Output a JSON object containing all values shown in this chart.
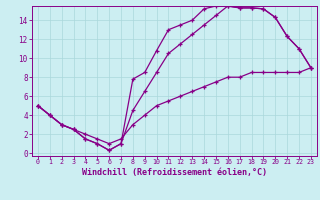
{
  "background_color": "#cceef2",
  "line_color": "#880088",
  "grid_color": "#aad8dc",
  "xlabel": "Windchill (Refroidissement éolien,°C)",
  "xlabel_fontsize": 6.0,
  "xtick_fontsize": 4.8,
  "ytick_fontsize": 5.5,
  "xlim": [
    -0.5,
    23.5
  ],
  "ylim": [
    -0.3,
    15.5
  ],
  "xticks": [
    0,
    1,
    2,
    3,
    4,
    5,
    6,
    7,
    8,
    9,
    10,
    11,
    12,
    13,
    14,
    15,
    16,
    17,
    18,
    19,
    20,
    21,
    22,
    23
  ],
  "yticks": [
    0,
    2,
    4,
    6,
    8,
    10,
    12,
    14
  ],
  "line1_x": [
    0,
    1,
    2,
    3,
    4,
    5,
    6,
    7,
    8,
    9,
    10,
    11,
    12,
    13,
    14,
    15,
    16,
    17,
    18,
    19,
    20,
    21,
    22,
    23
  ],
  "line1_y": [
    5,
    4,
    3,
    2.5,
    1.5,
    1,
    0.3,
    1.0,
    7.8,
    8.5,
    10.8,
    13,
    13.5,
    14.0,
    15.2,
    15.5,
    15.5,
    15.3,
    15.3,
    15.2,
    14.3,
    12.3,
    11.0,
    9.0
  ],
  "line2_x": [
    0,
    1,
    2,
    3,
    4,
    5,
    6,
    7,
    8,
    9,
    10,
    11,
    12,
    13,
    14,
    15,
    16,
    17,
    18,
    19,
    20,
    21,
    22,
    23
  ],
  "line2_y": [
    5,
    4,
    3,
    2.5,
    1.5,
    1,
    0.3,
    1.0,
    4.5,
    6.5,
    8.5,
    10.5,
    11.5,
    12.5,
    13.5,
    14.5,
    15.5,
    15.3,
    15.3,
    15.2,
    14.3,
    12.3,
    11.0,
    9.0
  ],
  "line3_x": [
    0,
    1,
    2,
    3,
    4,
    5,
    6,
    7,
    8,
    9,
    10,
    11,
    12,
    13,
    14,
    15,
    16,
    17,
    18,
    19,
    20,
    21,
    22,
    23
  ],
  "line3_y": [
    5,
    4,
    3,
    2.5,
    2.0,
    1.5,
    1.0,
    1.5,
    3.0,
    4.0,
    5.0,
    5.5,
    6.0,
    6.5,
    7.0,
    7.5,
    8.0,
    8.0,
    8.5,
    8.5,
    8.5,
    8.5,
    8.5,
    9.0
  ]
}
